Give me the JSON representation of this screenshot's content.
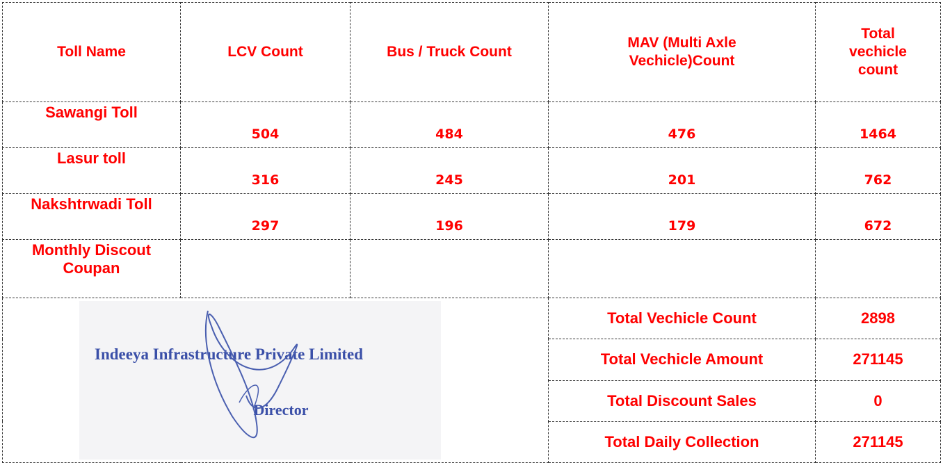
{
  "table": {
    "header": [
      "Toll Name",
      "LCV Count",
      "Bus / Truck Count",
      "MAV (Multi Axle Vechicle)Count",
      "Total vechicle count"
    ],
    "rows": [
      [
        "Sawangi Toll",
        504,
        484,
        476,
        1464
      ],
      [
        "Lasur toll",
        316,
        245,
        201,
        762
      ],
      [
        "Nakshtrwadi Toll",
        297,
        196,
        179,
        672
      ],
      [
        "Monthly Discout Coupan"
      ]
    ],
    "summary": [
      {
        "label": "Total Vechicle Count",
        "value": 2898
      },
      {
        "label": "Total Vechicle Amount",
        "value": 271145
      },
      {
        "label": "Total Discount Sales",
        "value": 0
      },
      {
        "label": "Total Daily Collection",
        "value": 271145
      }
    ]
  },
  "stamp": {
    "company": "Indeeya Infrastructure Private Limited",
    "title": "Director"
  }
}
